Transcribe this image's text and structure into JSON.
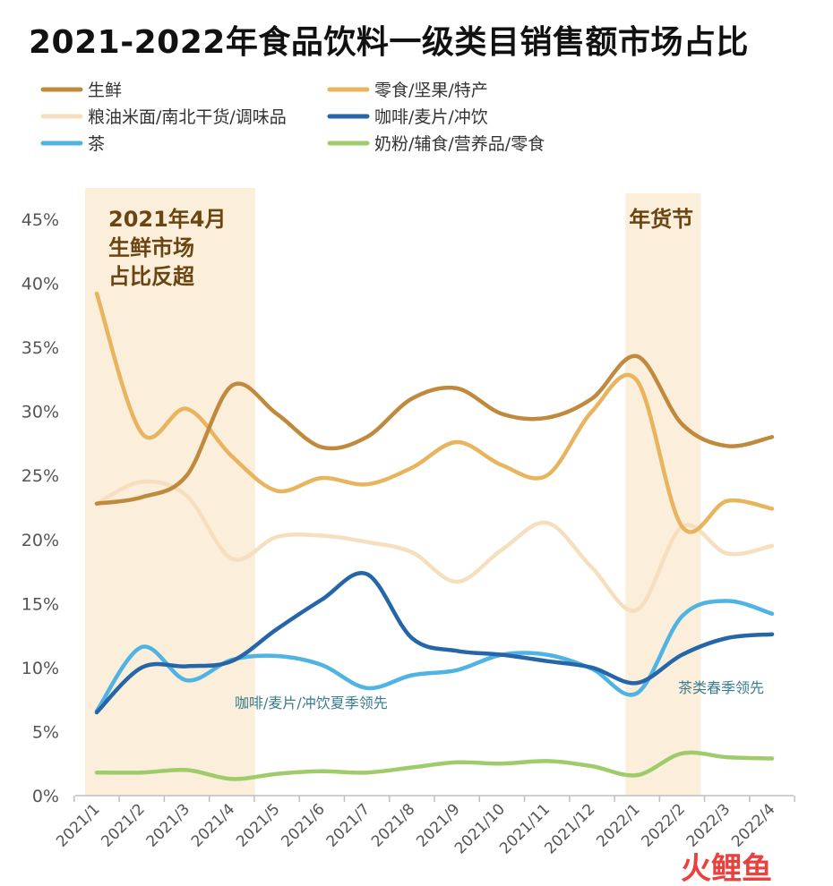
{
  "chart_data": {
    "type": "line",
    "title": "2021-2022年食品饮料一级类目销售额市场占比",
    "categories": [
      "2021/1",
      "2021/2",
      "2021/3",
      "2021/4",
      "2021/5",
      "2021/6",
      "2021/7",
      "2021/8",
      "2021/9",
      "2021/10",
      "2021/11",
      "2021/12",
      "2022/1",
      "2022/2",
      "2022/3",
      "2022/4"
    ],
    "ylim": [
      0,
      45
    ],
    "yticks": [
      "0%",
      "5%",
      "10%",
      "15%",
      "20%",
      "25%",
      "30%",
      "35%",
      "40%",
      "45%"
    ],
    "legend_placement": "top",
    "series": [
      {
        "name": "生鲜",
        "color": "#c08a3e",
        "values": [
          22.8,
          23.3,
          25.0,
          32.0,
          29.8,
          27.2,
          28.0,
          31.0,
          31.8,
          29.8,
          29.5,
          31.0,
          34.3,
          29.0,
          27.3,
          28.0
        ]
      },
      {
        "name": "零食/坚果/特产",
        "color": "#e9b45e",
        "values": [
          39.2,
          28.3,
          30.2,
          26.5,
          23.8,
          24.8,
          24.3,
          25.6,
          27.6,
          25.8,
          25.0,
          30.0,
          32.4,
          21.0,
          23.0,
          22.4
        ]
      },
      {
        "name": "粮油米面/南北干货/调味品",
        "color": "#f6dfbe",
        "values": [
          22.8,
          24.5,
          23.4,
          18.5,
          20.2,
          20.3,
          19.8,
          19.0,
          16.7,
          19.2,
          21.3,
          17.8,
          14.5,
          21.0,
          18.9,
          19.5
        ]
      },
      {
        "name": "咖啡/麦片/冲饮",
        "color": "#2566a8",
        "values": [
          6.5,
          10.0,
          10.1,
          10.5,
          13.0,
          15.3,
          17.3,
          12.3,
          11.3,
          11.0,
          10.5,
          10.0,
          8.8,
          11.0,
          12.3,
          12.6
        ]
      },
      {
        "name": "茶",
        "color": "#4fb3e3",
        "values": [
          6.6,
          11.6,
          9.0,
          10.6,
          10.9,
          10.2,
          8.4,
          9.4,
          9.8,
          11.0,
          11.0,
          9.9,
          8.0,
          14.0,
          15.2,
          14.2
        ]
      },
      {
        "name": "奶粉/辅食/营养品/零食",
        "color": "#9fcc6a",
        "values": [
          1.8,
          1.8,
          2.0,
          1.3,
          1.7,
          1.9,
          1.8,
          2.2,
          2.6,
          2.5,
          2.7,
          2.3,
          1.6,
          3.3,
          3.0,
          2.9
        ]
      }
    ],
    "highlights": [
      {
        "from": "2021/1",
        "to": "2021/4",
        "color": "#fbeedb",
        "label_lines": [
          "2021年4月",
          "生鲜市场",
          "占比反超"
        ]
      },
      {
        "from": "2022/1",
        "to": "2022/2",
        "color": "#fbeedb",
        "label_lines": [
          "年货节"
        ]
      }
    ],
    "annotations": [
      {
        "text": "咖啡/麦片/冲饮夏季领先"
      },
      {
        "text": "茶类春季领先"
      }
    ]
  },
  "watermark": {
    "text": "火鲤鱼",
    "color": "#e8423f"
  }
}
